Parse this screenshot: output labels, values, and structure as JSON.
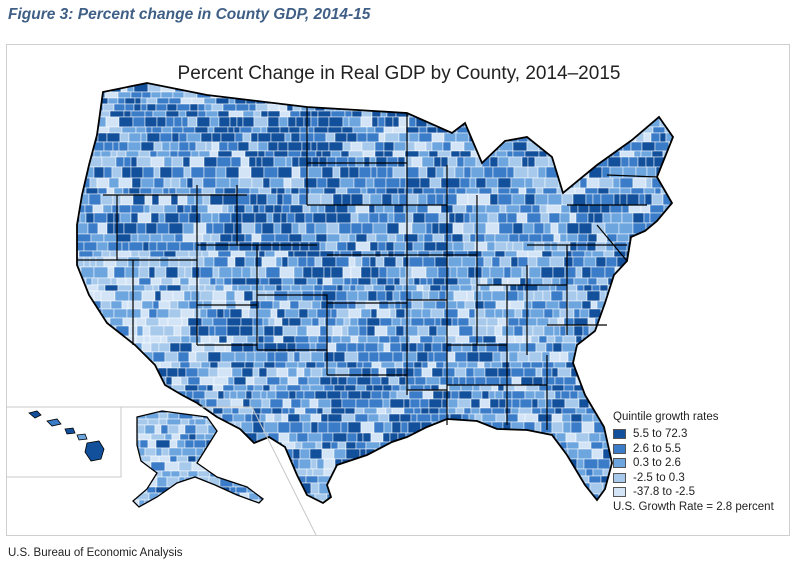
{
  "caption": "Figure 3: Percent change in County GDP, 2014-15",
  "map": {
    "title": "Percent Change in Real GDP by County, 2014–2015"
  },
  "legend": {
    "title": "Quintile growth rates",
    "items": [
      {
        "label": "5.5 to 72.3",
        "color": "#13509c"
      },
      {
        "label": "2.6 to 5.5",
        "color": "#3a7cc8"
      },
      {
        "label": "0.3 to 2.6",
        "color": "#6da6df"
      },
      {
        "label": "-2.5 to 0.3",
        "color": "#a6c9ec"
      },
      {
        "label": "-37.8 to -2.5",
        "color": "#d3e4f6"
      }
    ],
    "note": "U.S. Growth Rate = 2.8 percent"
  },
  "source": "U.S. Bureau of Economic Analysis"
}
